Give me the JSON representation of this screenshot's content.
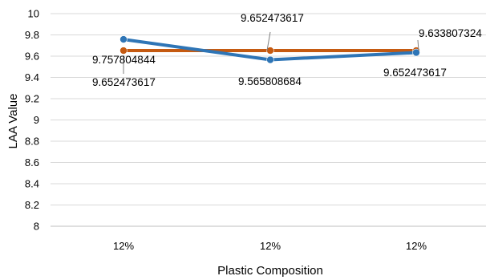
{
  "chart_data": {
    "type": "line",
    "title": "",
    "xlabel": "Plastic Composition",
    "ylabel": "LAA Value",
    "categories": [
      "12%",
      "12%",
      "12%"
    ],
    "ylim": [
      8,
      10
    ],
    "ytick_step": 0.2,
    "grid": true,
    "legend": "none",
    "series": [
      {
        "color": "#2E75B6",
        "values": [
          9.757804844,
          9.565808684,
          9.633807324
        ],
        "labels": [
          "9.757804844",
          "9.565808684",
          "9.633807324"
        ]
      },
      {
        "color": "#C55A11",
        "values": [
          9.652473617,
          9.652473617,
          9.652473617
        ],
        "labels": [
          "9.652473617",
          "9.652473617",
          "9.652473617"
        ]
      }
    ]
  }
}
